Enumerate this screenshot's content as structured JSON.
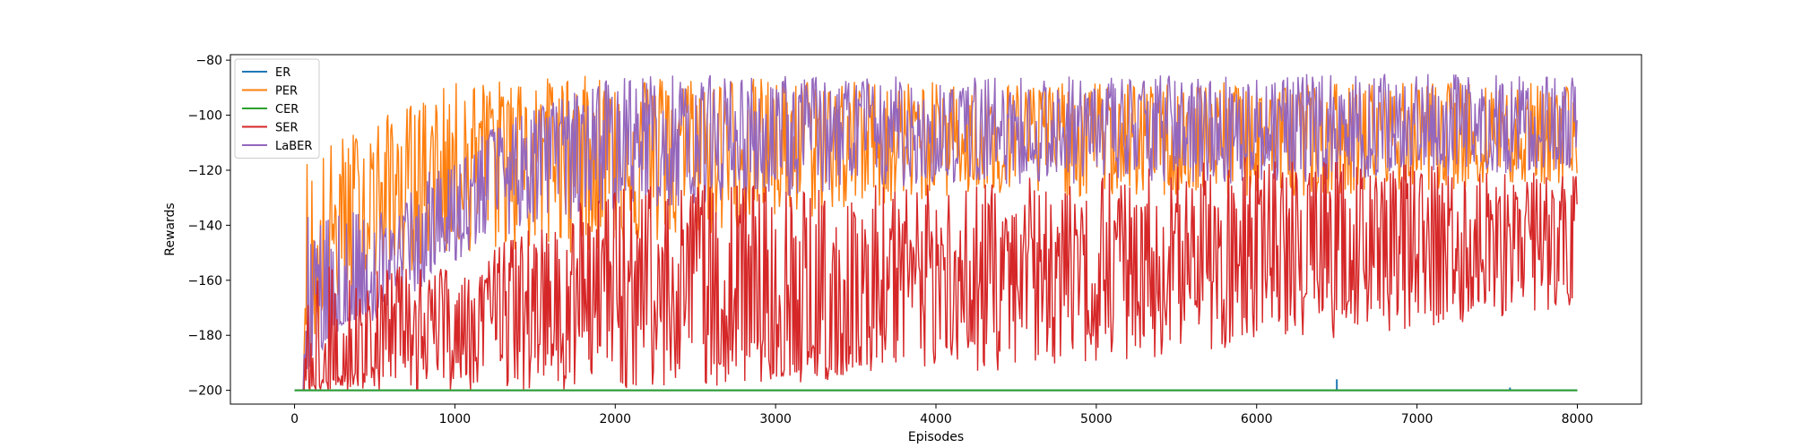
{
  "chart_data": {
    "type": "line",
    "title": "",
    "xlabel": "Episodes",
    "ylabel": "Rewards",
    "xlim": [
      -400,
      8400
    ],
    "ylim": [
      -205,
      -78
    ],
    "xticks": [
      0,
      1000,
      2000,
      3000,
      4000,
      5000,
      6000,
      7000,
      8000
    ],
    "yticks": [
      -200,
      -180,
      -160,
      -140,
      -120,
      -100,
      -80
    ],
    "xtick_labels": [
      "0",
      "1000",
      "2000",
      "3000",
      "4000",
      "5000",
      "6000",
      "7000",
      "8000"
    ],
    "ytick_labels": [
      "−200",
      "−180",
      "−160",
      "−140",
      "−120",
      "−100",
      "−80"
    ],
    "grid": false,
    "legend_position": "top-left",
    "series": [
      {
        "name": "ER",
        "color": "#1f77b4",
        "approx_mean_trend": [
          [
            0,
            -200
          ],
          [
            8000,
            -200
          ]
        ],
        "notable": [
          [
            6500,
            -196
          ],
          [
            7580,
            -199
          ]
        ]
      },
      {
        "name": "PER",
        "color": "#ff7f0e",
        "approx_mean_trend": [
          [
            0,
            -200
          ],
          [
            150,
            -185
          ],
          [
            200,
            -150
          ],
          [
            400,
            -135
          ],
          [
            700,
            -125
          ],
          [
            1000,
            -115
          ],
          [
            1250,
            -108
          ],
          [
            2000,
            -107
          ],
          [
            3000,
            -108
          ],
          [
            4000,
            -107
          ],
          [
            5000,
            -106
          ],
          [
            6000,
            -107
          ],
          [
            7000,
            -106
          ],
          [
            8000,
            -105
          ]
        ],
        "approx_range": [
          [
            200,
            -170,
            -110
          ],
          [
            1000,
            -150,
            -88
          ],
          [
            2000,
            -150,
            -85
          ],
          [
            4000,
            -130,
            -88
          ],
          [
            6000,
            -130,
            -88
          ],
          [
            8000,
            -125,
            -88
          ]
        ]
      },
      {
        "name": "CER",
        "color": "#2ca02c",
        "approx_mean_trend": [
          [
            0,
            -200
          ],
          [
            8000,
            -200
          ]
        ]
      },
      {
        "name": "SER",
        "color": "#d62728",
        "approx_mean_trend": [
          [
            0,
            -200
          ],
          [
            500,
            -190
          ],
          [
            1000,
            -178
          ],
          [
            1200,
            -170
          ],
          [
            2000,
            -165
          ],
          [
            2500,
            -165
          ],
          [
            2900,
            -175
          ],
          [
            3000,
            -195
          ],
          [
            3300,
            -180
          ],
          [
            4000,
            -160
          ],
          [
            5000,
            -158
          ],
          [
            6000,
            -150
          ],
          [
            6500,
            -145
          ],
          [
            7000,
            -145
          ],
          [
            8000,
            -145
          ]
        ],
        "approx_range": [
          [
            1000,
            -200,
            -155
          ],
          [
            2000,
            -200,
            -125
          ],
          [
            4000,
            -195,
            -125
          ],
          [
            6000,
            -185,
            -115
          ],
          [
            8000,
            -170,
            -120
          ]
        ]
      },
      {
        "name": "LaBER",
        "color": "#9467bd",
        "approx_mean_trend": [
          [
            0,
            -200
          ],
          [
            200,
            -185
          ],
          [
            500,
            -160
          ],
          [
            1000,
            -140
          ],
          [
            1200,
            -125
          ],
          [
            1500,
            -112
          ],
          [
            2000,
            -108
          ],
          [
            3000,
            -107
          ],
          [
            4000,
            -106
          ],
          [
            5000,
            -106
          ],
          [
            6000,
            -105
          ],
          [
            7000,
            -105
          ],
          [
            8000,
            -105
          ]
        ],
        "approx_range": [
          [
            500,
            -175,
            -135
          ],
          [
            1200,
            -145,
            -105
          ],
          [
            2000,
            -135,
            -85
          ],
          [
            4000,
            -125,
            -86
          ],
          [
            6000,
            -125,
            -85
          ],
          [
            8000,
            -120,
            -85
          ]
        ]
      }
    ]
  }
}
